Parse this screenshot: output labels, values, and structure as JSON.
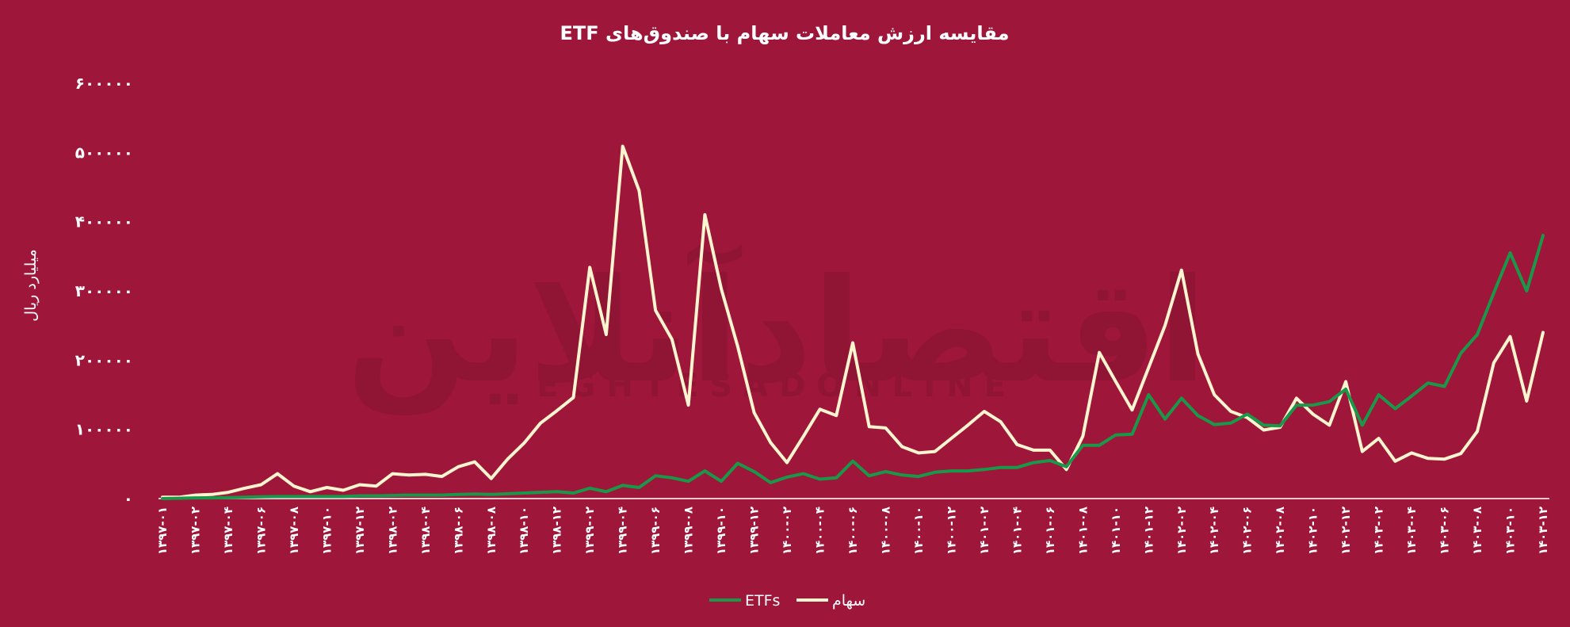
{
  "chart_data": {
    "type": "line",
    "title": "مقایسه ارزش معاملات سهام با صندوق‌های  ETF",
    "ylabel": "میلیارد ریال",
    "xlabel": "",
    "ylim": [
      0,
      600000
    ],
    "y_ticks": [
      0,
      100000,
      200000,
      300000,
      400000,
      500000,
      600000
    ],
    "y_tick_labels": [
      "۰",
      "۱۰۰۰۰۰",
      "۲۰۰۰۰۰",
      "۳۰۰۰۰۰",
      "۴۰۰۰۰۰",
      "۵۰۰۰۰۰",
      "۶۰۰۰۰۰"
    ],
    "x_tick_labels": [
      "۱۳۹۷-۰۱",
      "۱۳۹۷-۰۲",
      "۱۳۹۷-۰۴",
      "۱۳۹۷-۰۶",
      "۱۳۹۷-۰۸",
      "۱۳۹۷-۱۰",
      "۱۳۹۷-۱۲",
      "۱۳۹۸-۰۲",
      "۱۳۹۸-۰۴",
      "۱۳۹۸-۰۶",
      "۱۳۹۸-۰۸",
      "۱۳۹۸-۱۰",
      "۱۳۹۸-۱۲",
      "۱۳۹۹-۰۲",
      "۱۳۹۹-۰۴",
      "۱۳۹۹-۰۶",
      "۱۳۹۹-۰۸",
      "۱۳۹۹-۱۰",
      "۱۳۹۹-۱۲",
      "۱۴۰۰-۰۲",
      "۱۴۰۰-۰۴",
      "۱۴۰۰-۰۶",
      "۱۴۰۰-۰۸",
      "۱۴۰۰-۱۰",
      "۱۴۰۰-۱۲",
      "۱۴۰۱-۰۲",
      "۱۴۰۱-۰۴",
      "۱۴۰۱-۰۶",
      "۱۴۰۱-۰۸",
      "۱۴۰۱-۱۰",
      "۱۴۰۱-۱۲",
      "۱۴۰۲-۰۲",
      "۱۴۰۲-۰۴",
      "۱۴۰۲-۰۶",
      "۱۴۰۲-۰۸",
      "۱۴۰۲-۱۰",
      "۱۴۰۲-۱۲",
      "۱۴۰۳-۰۲",
      "۱۴۰۳-۰۴",
      "۱۴۰۳-۰۶",
      "۱۴۰۳-۰۸",
      "۱۴۰۳-۱۰",
      "۱۴۰۳-۱۲"
    ],
    "x_tick_step": 2,
    "grid": false,
    "legend_position": "bottom",
    "series": [
      {
        "name": "سهام",
        "color": "#fdf5cf",
        "values": [
          2000,
          2000,
          5000,
          6000,
          9000,
          15000,
          20000,
          36000,
          18000,
          10000,
          16000,
          12000,
          20000,
          18000,
          36000,
          34000,
          35000,
          32000,
          46000,
          53000,
          29000,
          57000,
          80000,
          109000,
          127000,
          146000,
          334000,
          237000,
          509000,
          445000,
          272000,
          230000,
          135000,
          410000,
          303000,
          220000,
          124000,
          81000,
          52000,
          90000,
          129000,
          120000,
          225000,
          104000,
          102000,
          75000,
          66000,
          68000,
          87000,
          106000,
          126000,
          111000,
          78000,
          70000,
          70000,
          42000,
          90000,
          211000,
          169000,
          128000,
          189000,
          250000,
          330000,
          209000,
          150000,
          126000,
          117000,
          99000,
          103000,
          145000,
          122000,
          106000,
          169000,
          68000,
          87000,
          54000,
          66000,
          58000,
          57000,
          65000,
          97000,
          196000,
          234000,
          141000,
          240000
        ]
      },
      {
        "name": "ETFs",
        "color": "#1a9849",
        "values": [
          0,
          500,
          1000,
          1000,
          1500,
          2000,
          2500,
          3000,
          3000,
          3000,
          3000,
          3000,
          4000,
          4000,
          4500,
          5000,
          5000,
          5000,
          6000,
          6500,
          6000,
          7000,
          8000,
          9000,
          10000,
          8000,
          15000,
          10000,
          19000,
          16000,
          33000,
          30000,
          25000,
          40000,
          25000,
          51000,
          39000,
          23000,
          31000,
          36000,
          28000,
          30000,
          54000,
          33000,
          39000,
          34000,
          32000,
          38000,
          40000,
          40000,
          42000,
          45000,
          45000,
          52000,
          55000,
          46000,
          77000,
          77000,
          92000,
          93000,
          150000,
          115000,
          145000,
          120000,
          107000,
          109000,
          122000,
          106000,
          105000,
          135000,
          135000,
          140000,
          158000,
          106000,
          150000,
          130000,
          148000,
          167000,
          162000,
          210000,
          237000,
          297000,
          355000,
          300000,
          380000
        ]
      }
    ]
  }
}
